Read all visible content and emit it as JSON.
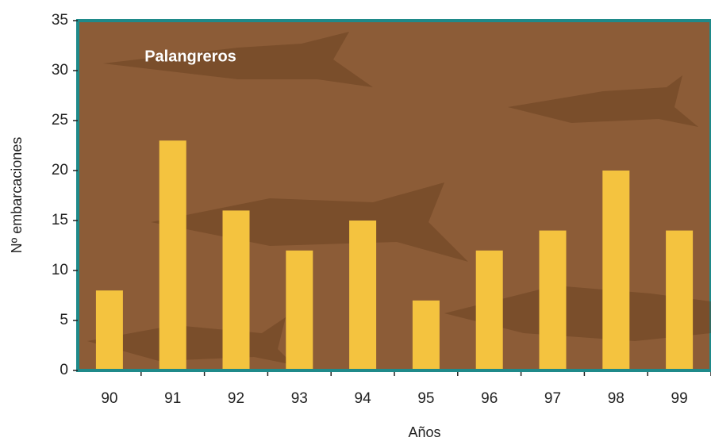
{
  "chart_data": {
    "type": "bar",
    "title": "Palangreros",
    "x_label": "Años",
    "y_label": "Nº embarcaciones",
    "categories": [
      "90",
      "91",
      "92",
      "93",
      "94",
      "95",
      "96",
      "97",
      "98",
      "99"
    ],
    "values": [
      8,
      23,
      16,
      12,
      15,
      7,
      12,
      14,
      20,
      14
    ],
    "color": "#f4c33f",
    "ylim": [
      0,
      35
    ],
    "yticks": [
      0,
      5,
      10,
      15,
      20,
      25,
      30,
      35
    ],
    "grid": false
  }
}
